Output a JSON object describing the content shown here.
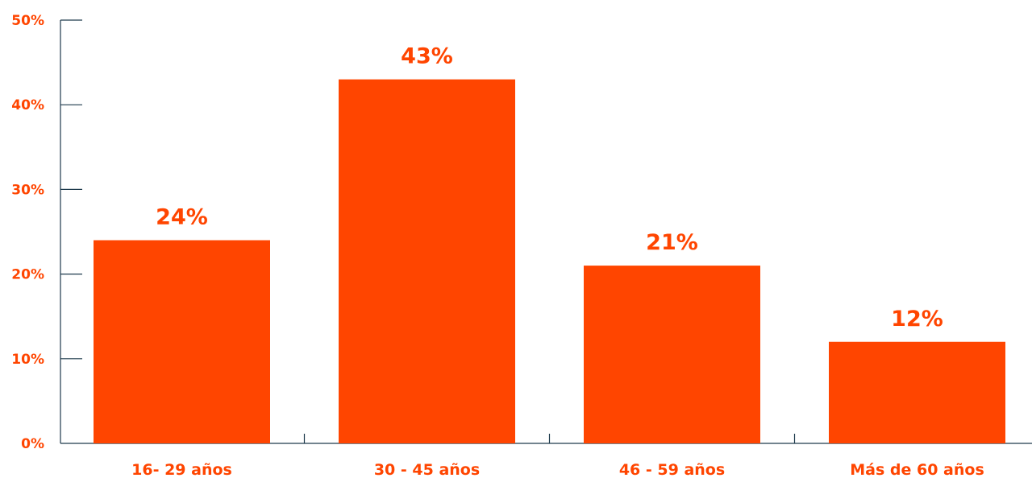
{
  "chart_data": {
    "type": "bar",
    "title": "",
    "xlabel": "",
    "ylabel": "",
    "categories": [
      "16- 29 años",
      "30 - 45 años",
      "46 - 59 años",
      "Más de 60 años"
    ],
    "values": [
      24,
      43,
      21,
      12
    ],
    "data_labels": [
      "24%",
      "43%",
      "21%",
      "12%"
    ],
    "ylim": [
      0,
      50
    ],
    "yticks": [
      0,
      10,
      20,
      30,
      40,
      50
    ],
    "ytick_labels": [
      "0%",
      "10%",
      "20%",
      "30%",
      "40%",
      "50%"
    ],
    "grid": false,
    "legend": "none"
  },
  "colors": {
    "bar": "#FF4500",
    "text": "#FF4500",
    "axis": "#1E3A4C"
  }
}
